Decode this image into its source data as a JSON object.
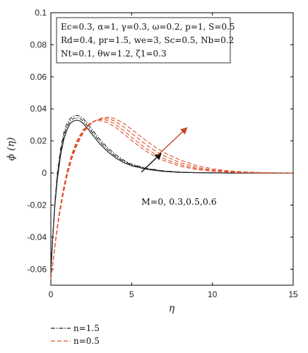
{
  "chart_data": {
    "type": "line",
    "xlabel": "η",
    "ylabel": "ϕ (η)",
    "xlim": [
      0,
      15
    ],
    "ylim": [
      -0.07,
      0.1
    ],
    "x_ticks": [
      "0",
      "5",
      "10",
      "15"
    ],
    "y_ticks": [
      "-0.06",
      "-0.04",
      "-0.02",
      "0",
      "0.02",
      "0.04",
      "0.06",
      "0.08",
      "0.1"
    ],
    "grid": false,
    "info_lines": [
      "Ec=0.3, α=1, γ=0.3, ω=0.2, p=1, S=0.5",
      "Rd=0.4, pr=1.5, we=3, Sc=0.5, Nb=0.2",
      "Nt=0.1, θw=1.2, ζ1=0.3"
    ],
    "annotation": "M=0, 0.3,0.5,0.6",
    "legend": [
      {
        "label": "n=1.5",
        "color": "#222222",
        "dash": "6,2,1.5,2"
      },
      {
        "label": "n=0.5",
        "color": "#e0502a",
        "dash": "6,3"
      }
    ],
    "series": [
      {
        "name": "n=1.5",
        "color": "#111111",
        "dash": "",
        "x": [
          0,
          0.1,
          0.25,
          0.4,
          0.6,
          0.8,
          1.0,
          1.2,
          1.4,
          1.6,
          1.8,
          2.0,
          2.3,
          2.6,
          3.0,
          3.5,
          4.0,
          4.5,
          5.0,
          6.0,
          7.0,
          8.0,
          9.0,
          10.0,
          11.0,
          12.0,
          13.0,
          14.0,
          15.0
        ],
        "y": [
          -0.06,
          -0.043,
          -0.02,
          -0.004,
          0.011,
          0.021,
          0.027,
          0.031,
          0.0325,
          0.033,
          0.0325,
          0.031,
          0.0275,
          0.0235,
          0.0185,
          0.0135,
          0.0095,
          0.0065,
          0.0045,
          0.0022,
          0.001,
          0.0004,
          0.0002,
          0.0001,
          0,
          0,
          0,
          0,
          0
        ]
      },
      {
        "name": "n=1.5",
        "color": "#222222",
        "dash": "6,2,1.5,2",
        "x": [
          0,
          0.1,
          0.25,
          0.4,
          0.6,
          0.8,
          1.0,
          1.2,
          1.4,
          1.6,
          1.8,
          2.0,
          2.3,
          2.6,
          3.0,
          3.5,
          4.0,
          4.5,
          5.0,
          6.0,
          7.0,
          8.0,
          9.0,
          10.0,
          11.0,
          12.0,
          13.0,
          14.0,
          15.0
        ],
        "y": [
          -0.061,
          -0.043,
          -0.019,
          -0.002,
          0.013,
          0.023,
          0.029,
          0.0325,
          0.034,
          0.0345,
          0.034,
          0.0325,
          0.029,
          0.025,
          0.02,
          0.0148,
          0.0105,
          0.0073,
          0.005,
          0.0025,
          0.0012,
          0.0005,
          0.0002,
          0.0001,
          0,
          0,
          0,
          0,
          0
        ]
      },
      {
        "name": "n=1.5",
        "color": "#222222",
        "dash": "6,2,1.5,2",
        "x": [
          0,
          0.1,
          0.25,
          0.4,
          0.6,
          0.8,
          1.0,
          1.2,
          1.4,
          1.6,
          1.8,
          2.0,
          2.3,
          2.6,
          3.0,
          3.5,
          4.0,
          4.5,
          5.0,
          6.0,
          7.0,
          8.0,
          9.0,
          10.0,
          11.0,
          12.0,
          13.0,
          14.0,
          15.0
        ],
        "y": [
          -0.062,
          -0.043,
          -0.018,
          0.0,
          0.015,
          0.025,
          0.031,
          0.034,
          0.0355,
          0.036,
          0.0355,
          0.034,
          0.0305,
          0.0265,
          0.0213,
          0.016,
          0.0115,
          0.008,
          0.0055,
          0.0028,
          0.0013,
          0.0006,
          0.0002,
          0.0001,
          0,
          0,
          0,
          0,
          0
        ]
      },
      {
        "name": "n=0.5",
        "color": "#e0502a",
        "dash": "6,3",
        "x": [
          0,
          0.15,
          0.3,
          0.5,
          0.75,
          1.0,
          1.3,
          1.6,
          2.0,
          2.4,
          2.8,
          3.2,
          3.6,
          4.0,
          4.5,
          5.0,
          5.5,
          6.0,
          6.5,
          7.0,
          8.0,
          9.0,
          10.0,
          11.0,
          12.0,
          13.0,
          14.0,
          15.0
        ],
        "y": [
          -0.066,
          -0.054,
          -0.041,
          -0.026,
          -0.011,
          0.001,
          0.012,
          0.02,
          0.027,
          0.031,
          0.0328,
          0.0325,
          0.031,
          0.0285,
          0.0245,
          0.0203,
          0.0165,
          0.013,
          0.01,
          0.0077,
          0.0042,
          0.0022,
          0.0011,
          0.0005,
          0.0002,
          0.0001,
          0,
          0
        ]
      },
      {
        "name": "n=0.5",
        "color": "#e0502a",
        "dash": "6,3",
        "x": [
          0,
          0.15,
          0.3,
          0.5,
          0.75,
          1.0,
          1.3,
          1.6,
          2.0,
          2.4,
          2.8,
          3.2,
          3.6,
          4.0,
          4.5,
          5.0,
          5.5,
          6.0,
          6.5,
          7.0,
          8.0,
          9.0,
          10.0,
          11.0,
          12.0,
          13.0,
          14.0,
          15.0
        ],
        "y": [
          -0.066,
          -0.054,
          -0.041,
          -0.026,
          -0.012,
          0.0,
          0.011,
          0.019,
          0.0265,
          0.0308,
          0.033,
          0.0335,
          0.0325,
          0.0303,
          0.0265,
          0.0223,
          0.0183,
          0.0147,
          0.0116,
          0.009,
          0.0052,
          0.0028,
          0.0014,
          0.0007,
          0.0003,
          0.0001,
          0,
          0
        ]
      },
      {
        "name": "n=0.5",
        "color": "#e0502a",
        "dash": "6,3",
        "x": [
          0,
          0.15,
          0.3,
          0.5,
          0.75,
          1.0,
          1.3,
          1.6,
          2.0,
          2.4,
          2.8,
          3.2,
          3.6,
          4.0,
          4.5,
          5.0,
          5.5,
          6.0,
          6.5,
          7.0,
          8.0,
          9.0,
          10.0,
          11.0,
          12.0,
          13.0,
          14.0,
          15.0
        ],
        "y": [
          -0.066,
          -0.054,
          -0.042,
          -0.027,
          -0.013,
          -0.001,
          0.01,
          0.018,
          0.026,
          0.0305,
          0.033,
          0.0342,
          0.0338,
          0.0322,
          0.0288,
          0.0248,
          0.0207,
          0.0169,
          0.0136,
          0.0108,
          0.0065,
          0.0036,
          0.0019,
          0.001,
          0.0005,
          0.0002,
          0.0001,
          0
        ]
      },
      {
        "name": "n=0.5",
        "color": "#e0502a",
        "dash": "6,3",
        "x": [
          0,
          0.15,
          0.3,
          0.5,
          0.75,
          1.0,
          1.3,
          1.6,
          2.0,
          2.4,
          2.8,
          3.2,
          3.6,
          4.0,
          4.5,
          5.0,
          5.5,
          6.0,
          6.5,
          7.0,
          8.0,
          9.0,
          10.0,
          11.0,
          12.0,
          13.0,
          14.0,
          15.0
        ],
        "y": [
          -0.066,
          -0.054,
          -0.042,
          -0.028,
          -0.014,
          -0.002,
          0.009,
          0.017,
          0.025,
          0.03,
          0.0328,
          0.0345,
          0.0348,
          0.0338,
          0.031,
          0.0273,
          0.0233,
          0.0194,
          0.0159,
          0.0128,
          0.0081,
          0.0047,
          0.0026,
          0.0014,
          0.0007,
          0.0003,
          0.0001,
          0
        ]
      }
    ],
    "arrows": [
      {
        "color": "#111111",
        "from": [
          5.6,
          0.0005
        ],
        "to": [
          6.8,
          0.012
        ]
      },
      {
        "color": "#c8452a",
        "from": [
          6.6,
          0.011
        ],
        "to": [
          8.4,
          0.028
        ]
      }
    ]
  }
}
